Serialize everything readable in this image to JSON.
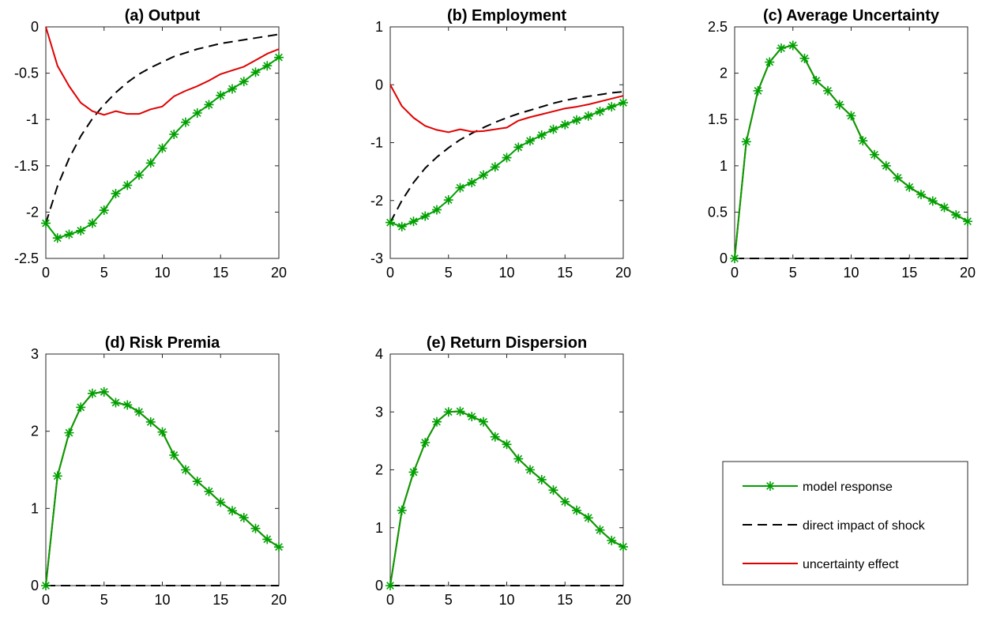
{
  "figure": {
    "colors": {
      "model": "#00a000",
      "direct": "#000000",
      "uncertainty": "#e00000"
    },
    "legend": {
      "placement": "bottom-right",
      "entries": [
        {
          "series": "model",
          "label": "model response"
        },
        {
          "series": "direct",
          "label": "direct impact of shock"
        },
        {
          "series": "uncertainty",
          "label": "uncertainty effect"
        }
      ]
    }
  },
  "chart_data": [
    {
      "type": "line",
      "title": "(a) Output",
      "xlim": [
        0,
        20
      ],
      "ylim": [
        -2.5,
        0
      ],
      "xticks": [
        0,
        5,
        10,
        15,
        20
      ],
      "yticks": [
        -2.5,
        -2,
        -1.5,
        -1,
        -0.5,
        0
      ],
      "x": [
        0,
        1,
        2,
        3,
        4,
        5,
        6,
        7,
        8,
        9,
        10,
        11,
        12,
        13,
        14,
        15,
        16,
        17,
        18,
        19,
        20
      ],
      "series": [
        {
          "name": "model response",
          "key": "model",
          "values": [
            -2.12,
            -2.28,
            -2.24,
            -2.2,
            -2.12,
            -1.98,
            -1.8,
            -1.71,
            -1.6,
            -1.47,
            -1.31,
            -1.16,
            -1.03,
            -0.93,
            -0.84,
            -0.74,
            -0.67,
            -0.59,
            -0.49,
            -0.42,
            -0.33
          ]
        },
        {
          "name": "direct impact of shock",
          "key": "direct",
          "values": [
            -2.12,
            -1.72,
            -1.42,
            -1.18,
            -0.99,
            -0.84,
            -0.71,
            -0.6,
            -0.51,
            -0.44,
            -0.38,
            -0.32,
            -0.28,
            -0.24,
            -0.21,
            -0.18,
            -0.16,
            -0.14,
            -0.12,
            -0.1,
            -0.08
          ]
        },
        {
          "name": "uncertainty effect",
          "key": "uncertainty",
          "values": [
            0,
            -0.42,
            -0.64,
            -0.82,
            -0.91,
            -0.95,
            -0.91,
            -0.94,
            -0.94,
            -0.89,
            -0.86,
            -0.75,
            -0.69,
            -0.64,
            -0.58,
            -0.51,
            -0.47,
            -0.43,
            -0.36,
            -0.29,
            -0.24
          ]
        }
      ]
    },
    {
      "type": "line",
      "title": "(b) Employment",
      "xlim": [
        0,
        20
      ],
      "ylim": [
        -3,
        1
      ],
      "xticks": [
        0,
        5,
        10,
        15,
        20
      ],
      "yticks": [
        -3,
        -2,
        -1,
        0,
        1
      ],
      "x": [
        0,
        1,
        2,
        3,
        4,
        5,
        6,
        7,
        8,
        9,
        10,
        11,
        12,
        13,
        14,
        15,
        16,
        17,
        18,
        19,
        20
      ],
      "series": [
        {
          "name": "model response",
          "key": "model",
          "values": [
            -2.38,
            -2.45,
            -2.36,
            -2.27,
            -2.16,
            -1.99,
            -1.78,
            -1.69,
            -1.56,
            -1.42,
            -1.26,
            -1.08,
            -0.97,
            -0.87,
            -0.77,
            -0.69,
            -0.61,
            -0.54,
            -0.46,
            -0.38,
            -0.31
          ]
        },
        {
          "name": "direct impact of shock",
          "key": "direct",
          "values": [
            -2.38,
            -2.0,
            -1.69,
            -1.44,
            -1.25,
            -1.09,
            -0.95,
            -0.84,
            -0.74,
            -0.65,
            -0.57,
            -0.5,
            -0.44,
            -0.38,
            -0.32,
            -0.27,
            -0.23,
            -0.2,
            -0.17,
            -0.14,
            -0.12
          ]
        },
        {
          "name": "uncertainty effect",
          "key": "uncertainty",
          "values": [
            0,
            -0.37,
            -0.57,
            -0.71,
            -0.78,
            -0.82,
            -0.77,
            -0.81,
            -0.8,
            -0.77,
            -0.74,
            -0.62,
            -0.56,
            -0.51,
            -0.46,
            -0.41,
            -0.38,
            -0.34,
            -0.29,
            -0.24,
            -0.19
          ]
        }
      ]
    },
    {
      "type": "line",
      "title": "(c) Average Uncertainty",
      "xlim": [
        0,
        20
      ],
      "ylim": [
        0,
        2.5
      ],
      "xticks": [
        0,
        5,
        10,
        15,
        20
      ],
      "yticks": [
        0,
        0.5,
        1,
        1.5,
        2,
        2.5
      ],
      "x": [
        0,
        1,
        2,
        3,
        4,
        5,
        6,
        7,
        8,
        9,
        10,
        11,
        12,
        13,
        14,
        15,
        16,
        17,
        18,
        19,
        20
      ],
      "series": [
        {
          "name": "model response",
          "key": "model",
          "values": [
            0,
            1.26,
            1.81,
            2.12,
            2.27,
            2.3,
            2.16,
            1.92,
            1.81,
            1.66,
            1.54,
            1.27,
            1.12,
            1.0,
            0.87,
            0.77,
            0.69,
            0.62,
            0.55,
            0.47,
            0.4
          ]
        },
        {
          "name": "direct impact of shock",
          "key": "direct",
          "values": [
            0,
            0,
            0,
            0,
            0,
            0,
            0,
            0,
            0,
            0,
            0,
            0,
            0,
            0,
            0,
            0,
            0,
            0,
            0,
            0,
            0
          ]
        },
        {
          "name": "uncertainty effect",
          "key": "uncertainty",
          "values": [
            0,
            1.26,
            1.81,
            2.12,
            2.27,
            2.3,
            2.16,
            1.92,
            1.81,
            1.66,
            1.54,
            1.27,
            1.12,
            1.0,
            0.87,
            0.77,
            0.69,
            0.62,
            0.55,
            0.47,
            0.4
          ]
        }
      ]
    },
    {
      "type": "line",
      "title": "(d) Risk Premia",
      "xlim": [
        0,
        20
      ],
      "ylim": [
        0,
        3
      ],
      "xticks": [
        0,
        5,
        10,
        15,
        20
      ],
      "yticks": [
        0,
        1,
        2,
        3
      ],
      "x": [
        0,
        1,
        2,
        3,
        4,
        5,
        6,
        7,
        8,
        9,
        10,
        11,
        12,
        13,
        14,
        15,
        16,
        17,
        18,
        19,
        20
      ],
      "series": [
        {
          "name": "model response",
          "key": "model",
          "values": [
            0,
            1.42,
            1.98,
            2.31,
            2.49,
            2.51,
            2.37,
            2.34,
            2.25,
            2.12,
            1.99,
            1.69,
            1.5,
            1.35,
            1.22,
            1.08,
            0.97,
            0.88,
            0.74,
            0.6,
            0.5
          ]
        },
        {
          "name": "direct impact of shock",
          "key": "direct",
          "values": [
            0,
            0,
            0,
            0,
            0,
            0,
            0,
            0,
            0,
            0,
            0,
            0,
            0,
            0,
            0,
            0,
            0,
            0,
            0,
            0,
            0
          ]
        },
        {
          "name": "uncertainty effect",
          "key": "uncertainty",
          "values": [
            0,
            1.42,
            1.98,
            2.31,
            2.49,
            2.51,
            2.37,
            2.34,
            2.25,
            2.12,
            1.99,
            1.69,
            1.5,
            1.35,
            1.22,
            1.08,
            0.97,
            0.88,
            0.74,
            0.6,
            0.5
          ]
        }
      ]
    },
    {
      "type": "line",
      "title": "(e) Return Dispersion",
      "xlim": [
        0,
        20
      ],
      "ylim": [
        0,
        4
      ],
      "xticks": [
        0,
        5,
        10,
        15,
        20
      ],
      "yticks": [
        0,
        1,
        2,
        3,
        4
      ],
      "x": [
        0,
        1,
        2,
        3,
        4,
        5,
        6,
        7,
        8,
        9,
        10,
        11,
        12,
        13,
        14,
        15,
        16,
        17,
        18,
        19,
        20
      ],
      "series": [
        {
          "name": "model response",
          "key": "model",
          "values": [
            0,
            1.3,
            1.96,
            2.47,
            2.83,
            3.0,
            3.01,
            2.92,
            2.83,
            2.57,
            2.44,
            2.19,
            2.0,
            1.83,
            1.65,
            1.45,
            1.3,
            1.17,
            0.96,
            0.78,
            0.67
          ]
        },
        {
          "name": "direct impact of shock",
          "key": "direct",
          "values": [
            0,
            0,
            0,
            0,
            0,
            0,
            0,
            0,
            0,
            0,
            0,
            0,
            0,
            0,
            0,
            0,
            0,
            0,
            0,
            0,
            0
          ]
        },
        {
          "name": "uncertainty effect",
          "key": "uncertainty",
          "values": [
            0,
            1.3,
            1.96,
            2.47,
            2.83,
            3.0,
            3.01,
            2.92,
            2.83,
            2.57,
            2.44,
            2.19,
            2.0,
            1.83,
            1.65,
            1.45,
            1.3,
            1.17,
            0.96,
            0.78,
            0.67
          ]
        }
      ]
    }
  ]
}
